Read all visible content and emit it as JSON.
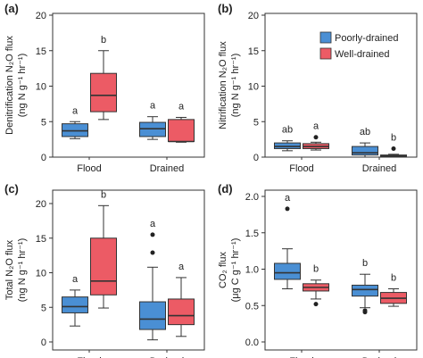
{
  "legend": {
    "items": [
      {
        "label": "Poorly-drained",
        "color": "#4a8fd4"
      },
      {
        "label": "Well-drained",
        "color": "#ec5b65"
      }
    ],
    "placement": "panel-b-top-right"
  },
  "chart_data": [
    {
      "panel": "(a)",
      "type": "box",
      "categories": [
        "Flood",
        "Drained"
      ],
      "ylabel": [
        "Denitrification N₂O flux",
        "(ng N g⁻¹ hr⁻¹)"
      ],
      "ylim": [
        0,
        20
      ],
      "yticks": [
        0,
        5,
        10,
        15,
        20
      ],
      "series": [
        {
          "name": "Poorly-drained",
          "color": "#4a8fd4",
          "boxes": [
            {
              "category": "Flood",
              "min": 2.6,
              "q1": 2.9,
              "median": 3.7,
              "q3": 4.7,
              "max": 5.0,
              "outliers": [],
              "letter": "a"
            },
            {
              "category": "Drained",
              "min": 2.5,
              "q1": 2.9,
              "median": 4.0,
              "q3": 4.9,
              "max": 5.7,
              "outliers": [],
              "letter": "a"
            }
          ]
        },
        {
          "name": "Well-drained",
          "color": "#ec5b65",
          "boxes": [
            {
              "category": "Flood",
              "min": 5.3,
              "q1": 6.4,
              "median": 8.7,
              "q3": 11.8,
              "max": 15.0,
              "outliers": [],
              "letter": "b"
            },
            {
              "category": "Drained",
              "min": 2.1,
              "q1": 2.2,
              "median": 2.2,
              "q3": 5.3,
              "max": 5.6,
              "outliers": [],
              "letter": "a"
            }
          ]
        }
      ]
    },
    {
      "panel": "(b)",
      "type": "box",
      "categories": [
        "Flood",
        "Drained"
      ],
      "ylabel": [
        "Nitrification N₂O flux",
        "(ng N g⁻¹ hr⁻¹)"
      ],
      "ylim": [
        0,
        20
      ],
      "yticks": [
        0,
        5,
        10,
        15,
        20
      ],
      "series": [
        {
          "name": "Poorly-drained",
          "color": "#4a8fd4",
          "boxes": [
            {
              "category": "Flood",
              "min": 0.9,
              "q1": 1.2,
              "median": 1.5,
              "q3": 2.0,
              "max": 2.3,
              "outliers": [],
              "letter": "ab"
            },
            {
              "category": "Drained",
              "min": 0.0,
              "q1": 0.3,
              "median": 0.6,
              "q3": 1.5,
              "max": 2.0,
              "outliers": [],
              "letter": "ab"
            }
          ]
        },
        {
          "name": "Well-drained",
          "color": "#ec5b65",
          "boxes": [
            {
              "category": "Flood",
              "min": 1.0,
              "q1": 1.2,
              "median": 1.5,
              "q3": 1.9,
              "max": 2.1,
              "outliers": [
                2.8
              ],
              "letter": "a"
            },
            {
              "category": "Drained",
              "min": 0.0,
              "q1": 0.1,
              "median": 0.2,
              "q3": 0.3,
              "max": 0.4,
              "outliers": [
                1.2
              ],
              "letter": "b"
            }
          ]
        }
      ]
    },
    {
      "panel": "(c)",
      "type": "box",
      "categories": [
        "Flood",
        "Drained"
      ],
      "ylabel": [
        "Total N₂O flux",
        "(ng N g⁻¹ hr⁻¹)"
      ],
      "ylim": [
        0,
        20
      ],
      "yticks": [
        0,
        5,
        10,
        15,
        20
      ],
      "series": [
        {
          "name": "Poorly-drained",
          "color": "#4a8fd4",
          "boxes": [
            {
              "category": "Flood",
              "min": 2.3,
              "q1": 4.2,
              "median": 5.1,
              "q3": 6.5,
              "max": 7.5,
              "outliers": [],
              "letter": "a"
            },
            {
              "category": "Drained",
              "min": 0.3,
              "q1": 1.8,
              "median": 3.3,
              "q3": 5.8,
              "max": 10.8,
              "outliers": [
                12.9,
                15.5
              ],
              "letter": "a"
            }
          ]
        },
        {
          "name": "Well-drained",
          "color": "#ec5b65",
          "boxes": [
            {
              "category": "Flood",
              "min": 4.9,
              "q1": 6.8,
              "median": 8.8,
              "q3": 15.0,
              "max": 19.7,
              "outliers": [],
              "letter": "b"
            },
            {
              "category": "Drained",
              "min": 0.8,
              "q1": 2.5,
              "median": 3.8,
              "q3": 6.2,
              "max": 9.3,
              "outliers": [],
              "letter": "a"
            }
          ]
        }
      ]
    },
    {
      "panel": "(d)",
      "type": "box",
      "categories": [
        "Flood",
        "Drained"
      ],
      "ylabel": [
        "CO₂ flux",
        "(μg C g⁻¹ hr⁻¹)"
      ],
      "ylim": [
        0,
        2.0
      ],
      "yticks": [
        0.0,
        0.5,
        1.0,
        1.5,
        2.0
      ],
      "yticklabels": [
        "0.0",
        "0.5",
        "1.0",
        "1.5",
        "2.0"
      ],
      "series": [
        {
          "name": "Poorly-drained",
          "color": "#4a8fd4",
          "boxes": [
            {
              "category": "Flood",
              "min": 0.73,
              "q1": 0.86,
              "median": 0.95,
              "q3": 1.08,
              "max": 1.28,
              "outliers": [
                1.83
              ],
              "letter": "a"
            },
            {
              "category": "Drained",
              "min": 0.47,
              "q1": 0.63,
              "median": 0.72,
              "q3": 0.78,
              "max": 0.93,
              "outliers": [
                0.43,
                0.41
              ],
              "letter": "b"
            }
          ]
        },
        {
          "name": "Well-drained",
          "color": "#ec5b65",
          "boxes": [
            {
              "category": "Flood",
              "min": 0.59,
              "q1": 0.7,
              "median": 0.75,
              "q3": 0.8,
              "max": 0.85,
              "outliers": [
                0.52
              ],
              "letter": "b"
            },
            {
              "category": "Drained",
              "min": 0.49,
              "q1": 0.53,
              "median": 0.6,
              "q3": 0.68,
              "max": 0.73,
              "outliers": [],
              "letter": "b"
            }
          ]
        }
      ]
    }
  ]
}
